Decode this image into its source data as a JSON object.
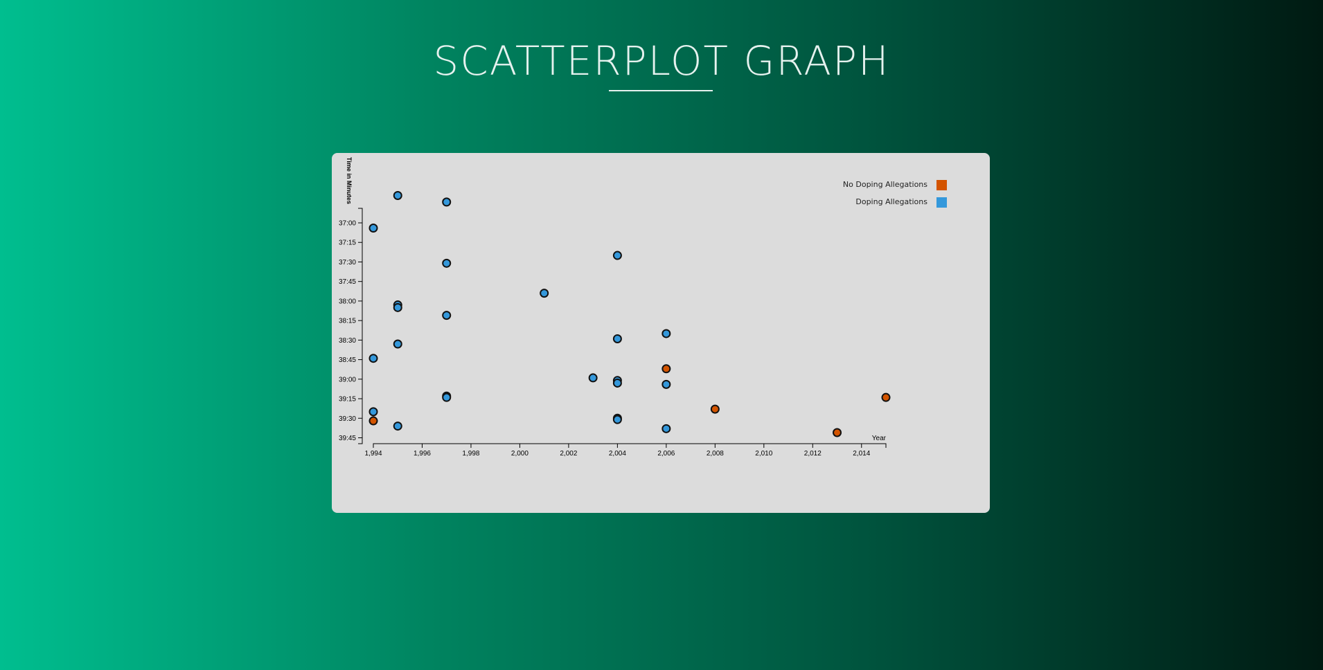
{
  "page": {
    "title": "SCATTERPLOT GRAPH",
    "background_start": "#00be8f",
    "background_end": "#001a12"
  },
  "chart_data": {
    "type": "scatter",
    "xlabel": "Year",
    "ylabel": "Time in Minutes",
    "xlim": [
      1994,
      2015
    ],
    "ylim_seconds": [
      2220,
      2385
    ],
    "x_ticks": [
      "1,994",
      "1,996",
      "1,998",
      "2,000",
      "2,002",
      "2,004",
      "2,006",
      "2,008",
      "2,010",
      "2,012",
      "2,014"
    ],
    "x_tick_values": [
      1994,
      1996,
      1998,
      2000,
      2002,
      2004,
      2006,
      2008,
      2010,
      2012,
      2014
    ],
    "y_ticks": [
      "37:00",
      "37:15",
      "37:30",
      "37:45",
      "38:00",
      "38:15",
      "38:30",
      "38:45",
      "39:00",
      "39:15",
      "39:30",
      "39:45"
    ],
    "y_tick_values": [
      2220,
      2235,
      2250,
      2265,
      2280,
      2295,
      2310,
      2325,
      2340,
      2355,
      2370,
      2385
    ],
    "grid": false,
    "legend_position": "top-right",
    "series": [
      {
        "name": "No Doping Allegations",
        "color": "#d35400",
        "points": [
          {
            "x": 1994,
            "y": 2372
          },
          {
            "x": 2006,
            "y": 2332
          },
          {
            "x": 2008,
            "y": 2363
          },
          {
            "x": 2013,
            "y": 2381
          },
          {
            "x": 2015,
            "y": 2354
          }
        ]
      },
      {
        "name": "Doping Allegations",
        "color": "#3498db",
        "points": [
          {
            "x": 1995,
            "y": 2199
          },
          {
            "x": 1997,
            "y": 2204
          },
          {
            "x": 1994,
            "y": 2224
          },
          {
            "x": 2004,
            "y": 2245
          },
          {
            "x": 1997,
            "y": 2251
          },
          {
            "x": 2001,
            "y": 2274
          },
          {
            "x": 1995,
            "y": 2283
          },
          {
            "x": 1995,
            "y": 2285
          },
          {
            "x": 1997,
            "y": 2291
          },
          {
            "x": 2006,
            "y": 2305
          },
          {
            "x": 2004,
            "y": 2309
          },
          {
            "x": 1995,
            "y": 2313
          },
          {
            "x": 1994,
            "y": 2324
          },
          {
            "x": 2003,
            "y": 2339
          },
          {
            "x": 2004,
            "y": 2341
          },
          {
            "x": 2004,
            "y": 2343
          },
          {
            "x": 2006,
            "y": 2344
          },
          {
            "x": 1997,
            "y": 2353
          },
          {
            "x": 1997,
            "y": 2354
          },
          {
            "x": 1994,
            "y": 2365
          },
          {
            "x": 2004,
            "y": 2370
          },
          {
            "x": 2004,
            "y": 2371
          },
          {
            "x": 1995,
            "y": 2376
          },
          {
            "x": 2006,
            "y": 2378
          }
        ]
      }
    ]
  }
}
